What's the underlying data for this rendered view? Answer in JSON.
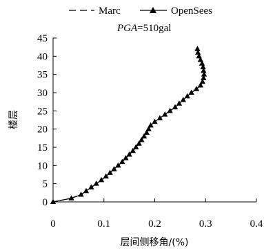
{
  "chart_data": {
    "type": "line",
    "annotation_italic": "PGA",
    "annotation_rest": "=510gal",
    "xlabel": "层间侧移角/(%)",
    "ylabel": "楼层",
    "xlim": [
      0,
      0.4
    ],
    "ylim": [
      0,
      45
    ],
    "x_ticks": [
      "0",
      "0.1",
      "0.2",
      "0.3",
      "0.4"
    ],
    "y_ticks": [
      "0",
      "5",
      "10",
      "15",
      "20",
      "25",
      "30",
      "35",
      "40",
      "45"
    ],
    "legend_position": "top",
    "series": [
      {
        "name": "Marc",
        "style": "dashed",
        "color": "#000000",
        "points": [
          [
            0,
            0
          ],
          [
            0.036,
            1
          ],
          [
            0.055,
            2
          ],
          [
            0.065,
            3
          ],
          [
            0.075,
            4
          ],
          [
            0.085,
            5
          ],
          [
            0.095,
            6
          ],
          [
            0.104,
            7
          ],
          [
            0.112,
            8
          ],
          [
            0.12,
            9
          ],
          [
            0.128,
            10
          ],
          [
            0.136,
            11
          ],
          [
            0.143,
            12
          ],
          [
            0.15,
            13
          ],
          [
            0.157,
            14
          ],
          [
            0.163,
            15
          ],
          [
            0.169,
            16
          ],
          [
            0.174,
            17
          ],
          [
            0.179,
            18
          ],
          [
            0.184,
            19
          ],
          [
            0.188,
            20
          ],
          [
            0.192,
            21
          ],
          [
            0.2,
            22
          ],
          [
            0.21,
            23
          ],
          [
            0.22,
            24
          ],
          [
            0.23,
            25
          ],
          [
            0.24,
            26
          ],
          [
            0.248,
            27
          ],
          [
            0.256,
            28
          ],
          [
            0.264,
            29
          ],
          [
            0.272,
            30
          ],
          [
            0.282,
            31
          ],
          [
            0.29,
            32
          ],
          [
            0.294,
            33
          ],
          [
            0.296,
            34
          ],
          [
            0.297,
            35
          ],
          [
            0.296,
            36
          ],
          [
            0.295,
            37
          ],
          [
            0.293,
            38
          ],
          [
            0.29,
            39
          ],
          [
            0.287,
            40
          ],
          [
            0.285,
            41
          ],
          [
            0.284,
            42
          ]
        ]
      },
      {
        "name": "OpenSees",
        "style": "solid-triangle",
        "color": "#000000",
        "points": [
          [
            0,
            0
          ],
          [
            0.036,
            1
          ],
          [
            0.055,
            2
          ],
          [
            0.065,
            3
          ],
          [
            0.075,
            4
          ],
          [
            0.085,
            5
          ],
          [
            0.095,
            6
          ],
          [
            0.104,
            7
          ],
          [
            0.112,
            8
          ],
          [
            0.12,
            9
          ],
          [
            0.128,
            10
          ],
          [
            0.136,
            11
          ],
          [
            0.143,
            12
          ],
          [
            0.15,
            13
          ],
          [
            0.157,
            14
          ],
          [
            0.163,
            15
          ],
          [
            0.169,
            16
          ],
          [
            0.174,
            17
          ],
          [
            0.179,
            18
          ],
          [
            0.184,
            19
          ],
          [
            0.188,
            20
          ],
          [
            0.192,
            21
          ],
          [
            0.2,
            22
          ],
          [
            0.21,
            23
          ],
          [
            0.22,
            24
          ],
          [
            0.23,
            25
          ],
          [
            0.24,
            26
          ],
          [
            0.248,
            27
          ],
          [
            0.256,
            28
          ],
          [
            0.264,
            29
          ],
          [
            0.272,
            30
          ],
          [
            0.282,
            31
          ],
          [
            0.29,
            32
          ],
          [
            0.294,
            33
          ],
          [
            0.296,
            34
          ],
          [
            0.297,
            35
          ],
          [
            0.296,
            36
          ],
          [
            0.295,
            37
          ],
          [
            0.293,
            38
          ],
          [
            0.29,
            39
          ],
          [
            0.287,
            40
          ],
          [
            0.285,
            41
          ],
          [
            0.284,
            42
          ]
        ]
      }
    ]
  }
}
